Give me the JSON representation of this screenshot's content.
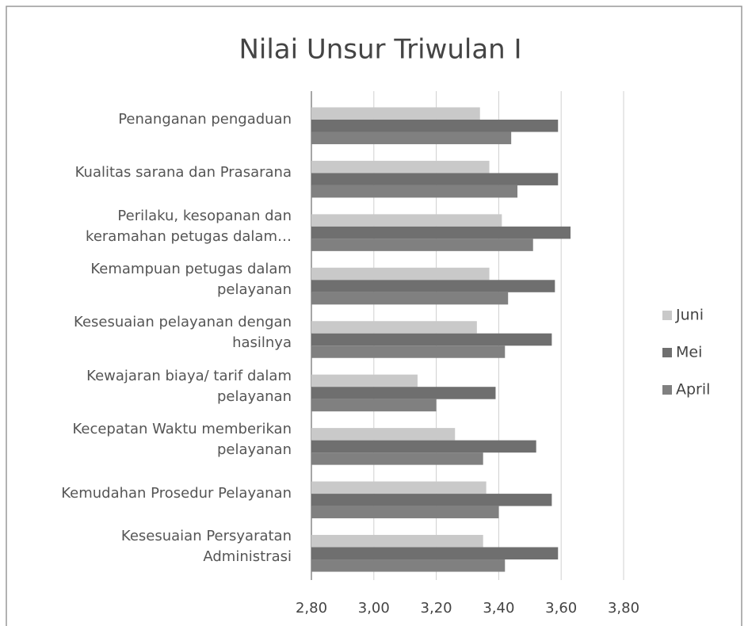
{
  "chart_data": {
    "type": "bar",
    "orientation": "horizontal",
    "title": "Nilai Unsur Triwulan I",
    "categories": [
      "Penanganan pengaduan",
      "Kualitas sarana dan Prasarana",
      "Perilaku, kesopanan dan\nkeramahan petugas dalam…",
      "Kemampuan petugas dalam\npelayanan",
      "Kesesuaian pelayanan dengan\nhasilnya",
      "Kewajaran biaya/ tarif dalam\npelayanan",
      "Kecepatan Waktu memberikan\npelayanan",
      "Kemudahan Prosedur Pelayanan",
      "Kesesuaian Persyaratan\nAdministrasi"
    ],
    "series": [
      {
        "name": "Juni",
        "color": "#c9c9c9",
        "values": [
          3.34,
          3.37,
          3.41,
          3.37,
          3.33,
          3.14,
          3.26,
          3.36,
          3.35
        ]
      },
      {
        "name": "Mei",
        "color": "#6f6f6f",
        "values": [
          3.59,
          3.59,
          3.63,
          3.58,
          3.57,
          3.39,
          3.52,
          3.57,
          3.59
        ]
      },
      {
        "name": "April",
        "color": "#808080",
        "values": [
          3.44,
          3.46,
          3.51,
          3.43,
          3.42,
          3.2,
          3.35,
          3.4,
          3.42
        ]
      }
    ],
    "xlim": [
      2.8,
      3.8
    ],
    "xticks": [
      {
        "value": 2.8,
        "label": "2,80"
      },
      {
        "value": 3.0,
        "label": "3,00"
      },
      {
        "value": 3.2,
        "label": "3,20"
      },
      {
        "value": 3.4,
        "label": "3,40"
      },
      {
        "value": 3.6,
        "label": "3,60"
      },
      {
        "value": 3.8,
        "label": "3,80"
      }
    ],
    "grid": true,
    "legend": "right"
  }
}
